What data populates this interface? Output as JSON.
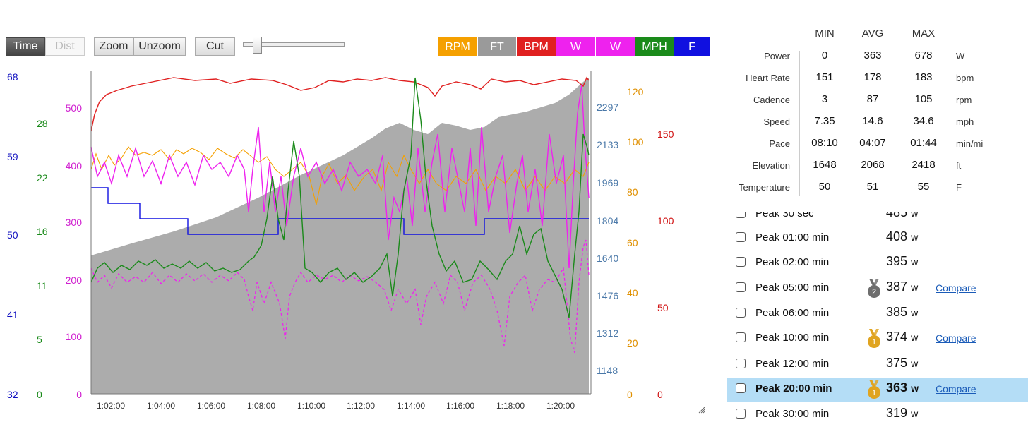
{
  "toolbar": {
    "time_label": "Time",
    "dist_label": "Dist",
    "zoom_label": "Zoom",
    "unzoom_label": "Unzoom",
    "cut_label": "Cut"
  },
  "series_toggles": [
    {
      "label": "RPM",
      "color": "#f5a000"
    },
    {
      "label": "FT",
      "color": "#9a9a9a"
    },
    {
      "label": "BPM",
      "color": "#e02020"
    },
    {
      "label": "W",
      "color": "#ee22ee"
    },
    {
      "label": "W",
      "color": "#ee22ee"
    },
    {
      "label": "MPH",
      "color": "#1a8a1a"
    },
    {
      "label": "F",
      "color": "#1010e0"
    }
  ],
  "axes": {
    "temp_f": [
      "68",
      "59",
      "50",
      "41",
      "32"
    ],
    "speed_mph": [
      "28",
      "22",
      "16",
      "11",
      "5",
      "0"
    ],
    "power_w": [
      "500",
      "400",
      "300",
      "200",
      "100",
      "0"
    ],
    "elevation_ft": [
      "2297",
      "2133",
      "1969",
      "1804",
      "1640",
      "1476",
      "1312",
      "1148"
    ],
    "cadence_rpm": [
      "120",
      "100",
      "80",
      "60",
      "40",
      "20",
      "0"
    ],
    "heart_bpm": [
      "150",
      "100",
      "50",
      "0"
    ],
    "time": [
      "1:02:00",
      "1:04:00",
      "1:06:00",
      "1:08:00",
      "1:10:00",
      "1:12:00",
      "1:14:00",
      "1:16:00",
      "1:18:00",
      "1:20:00"
    ]
  },
  "stats": {
    "headers": [
      "MIN",
      "AVG",
      "MAX"
    ],
    "rows": [
      {
        "label": "Power",
        "min": "0",
        "avg": "363",
        "max": "678",
        "unit": "W"
      },
      {
        "label": "Heart Rate",
        "min": "151",
        "avg": "178",
        "max": "183",
        "unit": "bpm"
      },
      {
        "label": "Cadence",
        "min": "3",
        "avg": "87",
        "max": "105",
        "unit": "rpm"
      },
      {
        "label": "Speed",
        "min": "7.35",
        "avg": "14.6",
        "max": "34.6",
        "unit": "mph"
      },
      {
        "label": "Pace",
        "min": "08:10",
        "avg": "04:07",
        "max": "01:44",
        "unit": "min/mi"
      },
      {
        "label": "Elevation",
        "min": "1648",
        "avg": "2068",
        "max": "2418",
        "unit": "ft"
      },
      {
        "label": "Temperature",
        "min": "50",
        "avg": "51",
        "max": "55",
        "unit": "F"
      }
    ]
  },
  "peaks": [
    {
      "label": "Peak 30 sec",
      "value": "485",
      "unit": "w",
      "medal": "",
      "compare": "",
      "highlighted": false
    },
    {
      "label": "Peak 01:00 min",
      "value": "408",
      "unit": "w",
      "medal": "",
      "compare": "",
      "highlighted": false
    },
    {
      "label": "Peak 02:00 min",
      "value": "395",
      "unit": "w",
      "medal": "",
      "compare": "",
      "highlighted": false
    },
    {
      "label": "Peak 05:00 min",
      "value": "387",
      "unit": "w",
      "medal": "2",
      "compare": "Compare",
      "highlighted": false
    },
    {
      "label": "Peak 06:00 min",
      "value": "385",
      "unit": "w",
      "medal": "",
      "compare": "",
      "highlighted": false
    },
    {
      "label": "Peak 10:00 min",
      "value": "374",
      "unit": "w",
      "medal": "1",
      "compare": "Compare",
      "highlighted": false
    },
    {
      "label": "Peak 12:00 min",
      "value": "375",
      "unit": "w",
      "medal": "",
      "compare": "",
      "highlighted": false
    },
    {
      "label": "Peak 20:00 min",
      "value": "363",
      "unit": "w",
      "medal": "1",
      "compare": "Compare",
      "highlighted": true
    },
    {
      "label": "Peak 30:00 min",
      "value": "319",
      "unit": "w",
      "medal": "",
      "compare": "",
      "highlighted": false
    }
  ]
}
